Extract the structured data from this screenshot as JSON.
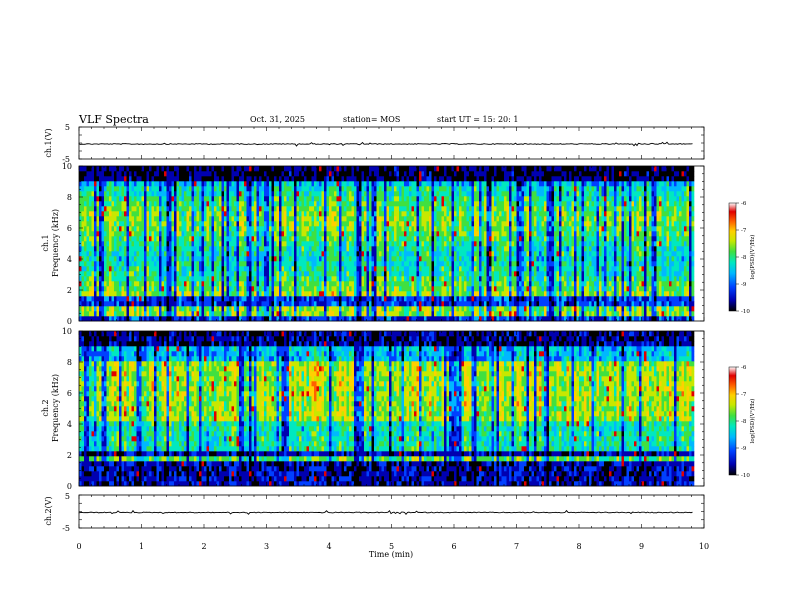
{
  "header": {
    "title": "VLF Spectra",
    "date": "Oct. 31, 2025",
    "station": "station= MOS",
    "start": "start  UT  =   15: 20: 1"
  },
  "chart_data": [
    {
      "type": "line",
      "ylabel": "ch.1(V)",
      "ylim": [
        -5,
        5
      ],
      "yticks": [
        "5",
        "-5"
      ],
      "level": 0
    },
    {
      "type": "heatmap",
      "ylabel_top": "ch.1",
      "ylabel": "Frequency (kHz)",
      "ylim": [
        0,
        10
      ],
      "yticks": [
        "0",
        "2",
        "4",
        "6",
        "8",
        "10"
      ],
      "colorbar": {
        "label": "log(PSD)(V²/Hz)",
        "range": [
          -10,
          -6
        ],
        "ticks": [
          "-10",
          "-9",
          "-8",
          "-7",
          "-6"
        ]
      }
    },
    {
      "type": "heatmap",
      "ylabel_top": "ch.2",
      "ylabel": "Frequency (kHz)",
      "ylim": [
        0,
        10
      ],
      "yticks": [
        "0",
        "2",
        "4",
        "6",
        "8",
        "10"
      ],
      "colorbar": {
        "label": "log(PSD)(V²/Hz)",
        "range": [
          -10,
          -6
        ],
        "ticks": [
          "-10",
          "-9",
          "-8",
          "-7",
          "-6"
        ]
      }
    },
    {
      "type": "line",
      "ylabel": "ch.2(V)",
      "ylim": [
        -5,
        5
      ],
      "yticks": [
        "5",
        "-5"
      ],
      "level": 0
    }
  ],
  "xaxis": {
    "label": "Time (min)",
    "xlim": [
      0,
      10
    ],
    "ticks": [
      "0",
      "1",
      "2",
      "3",
      "4",
      "5",
      "6",
      "7",
      "8",
      "9",
      "10"
    ],
    "data_end": 9.83
  },
  "colors": {
    "scale": [
      "#000000",
      "#0000b0",
      "#0040ff",
      "#00b8ff",
      "#00e8c0",
      "#40e040",
      "#c8e800",
      "#ffd000",
      "#ff6000",
      "#e00000",
      "#ffffff"
    ]
  }
}
